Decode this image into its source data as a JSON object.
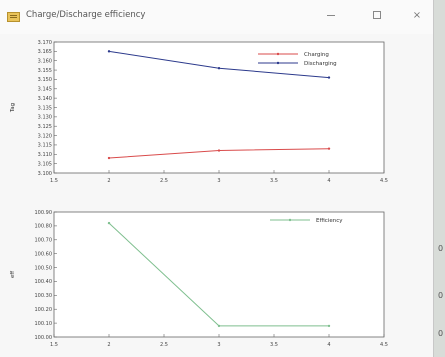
{
  "window": {
    "title": "Charge/Discharge efficiency",
    "min_icon": "minimize-icon",
    "max_icon": "maximize-icon",
    "close_label": "×"
  },
  "side_marks": [
    "0",
    "0",
    "0"
  ],
  "chart_data": [
    {
      "type": "line",
      "title": "",
      "xlabel": "",
      "ylabel": "Tag",
      "x": [
        2,
        3,
        4
      ],
      "xlim": [
        1.5,
        4.5
      ],
      "xticks": [
        "1.5",
        "2",
        "2.5",
        "3",
        "3.5",
        "4",
        "4.5"
      ],
      "ylim": [
        3.1,
        3.17
      ],
      "yticks": [
        "3.100",
        "3.105",
        "3.110",
        "3.115",
        "3.120",
        "3.125",
        "3.130",
        "3.135",
        "3.140",
        "3.145",
        "3.150",
        "3.155",
        "3.160",
        "3.165",
        "3.170"
      ],
      "legend_position": "top-right",
      "series": [
        {
          "name": "Charging",
          "color": "#d94b4b",
          "values": [
            3.108,
            3.112,
            3.113
          ]
        },
        {
          "name": "Discharging",
          "color": "#2c3a8c",
          "values": [
            3.165,
            3.156,
            3.151
          ]
        }
      ]
    },
    {
      "type": "line",
      "title": "",
      "xlabel": "",
      "ylabel": "eff",
      "x": [
        2,
        3,
        4
      ],
      "xlim": [
        1.5,
        4.5
      ],
      "xticks": [
        "1.5",
        "2",
        "2.5",
        "3",
        "3.5",
        "4",
        "4.5"
      ],
      "ylim": [
        100.0,
        100.9
      ],
      "yticks": [
        "100.90",
        "100.80",
        "100.70",
        "100.60",
        "100.50",
        "100.40",
        "100.30",
        "100.20",
        "100.10",
        "100.00"
      ],
      "legend_position": "top-right",
      "series": [
        {
          "name": "Efficiency",
          "color": "#7fbf8f",
          "values": [
            100.82,
            100.08,
            100.08
          ]
        }
      ]
    }
  ]
}
